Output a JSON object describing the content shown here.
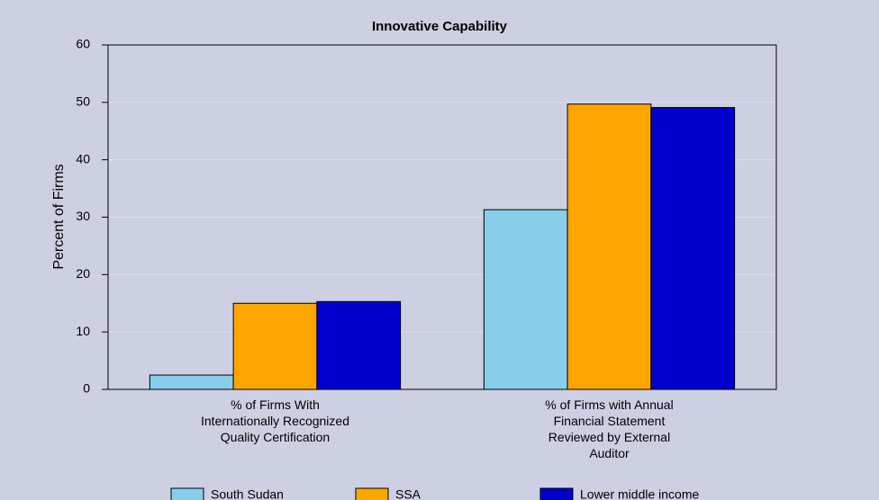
{
  "chart_data": {
    "type": "bar",
    "title": "Innovative Capability",
    "y_label": "Percent of Firms",
    "categories": [
      "% of Firms With Internationally Recognized Quality Certification",
      "% of Firms with Annual Financial Statement Reviewed by External Auditor"
    ],
    "series": [
      {
        "name": "South Sudan",
        "color": "#87ceeb",
        "values": [
          2.5,
          31.3
        ]
      },
      {
        "name": "SSA",
        "color": "#ffa500",
        "values": [
          15.0,
          49.7
        ]
      },
      {
        "name": "Lower middle income",
        "color": "#0000cd",
        "values": [
          15.3,
          49.1
        ]
      }
    ],
    "ylim": [
      0,
      60
    ],
    "yticks": [
      0,
      10,
      20,
      30,
      40,
      50,
      60
    ],
    "grid": true,
    "legend": "bottom"
  }
}
